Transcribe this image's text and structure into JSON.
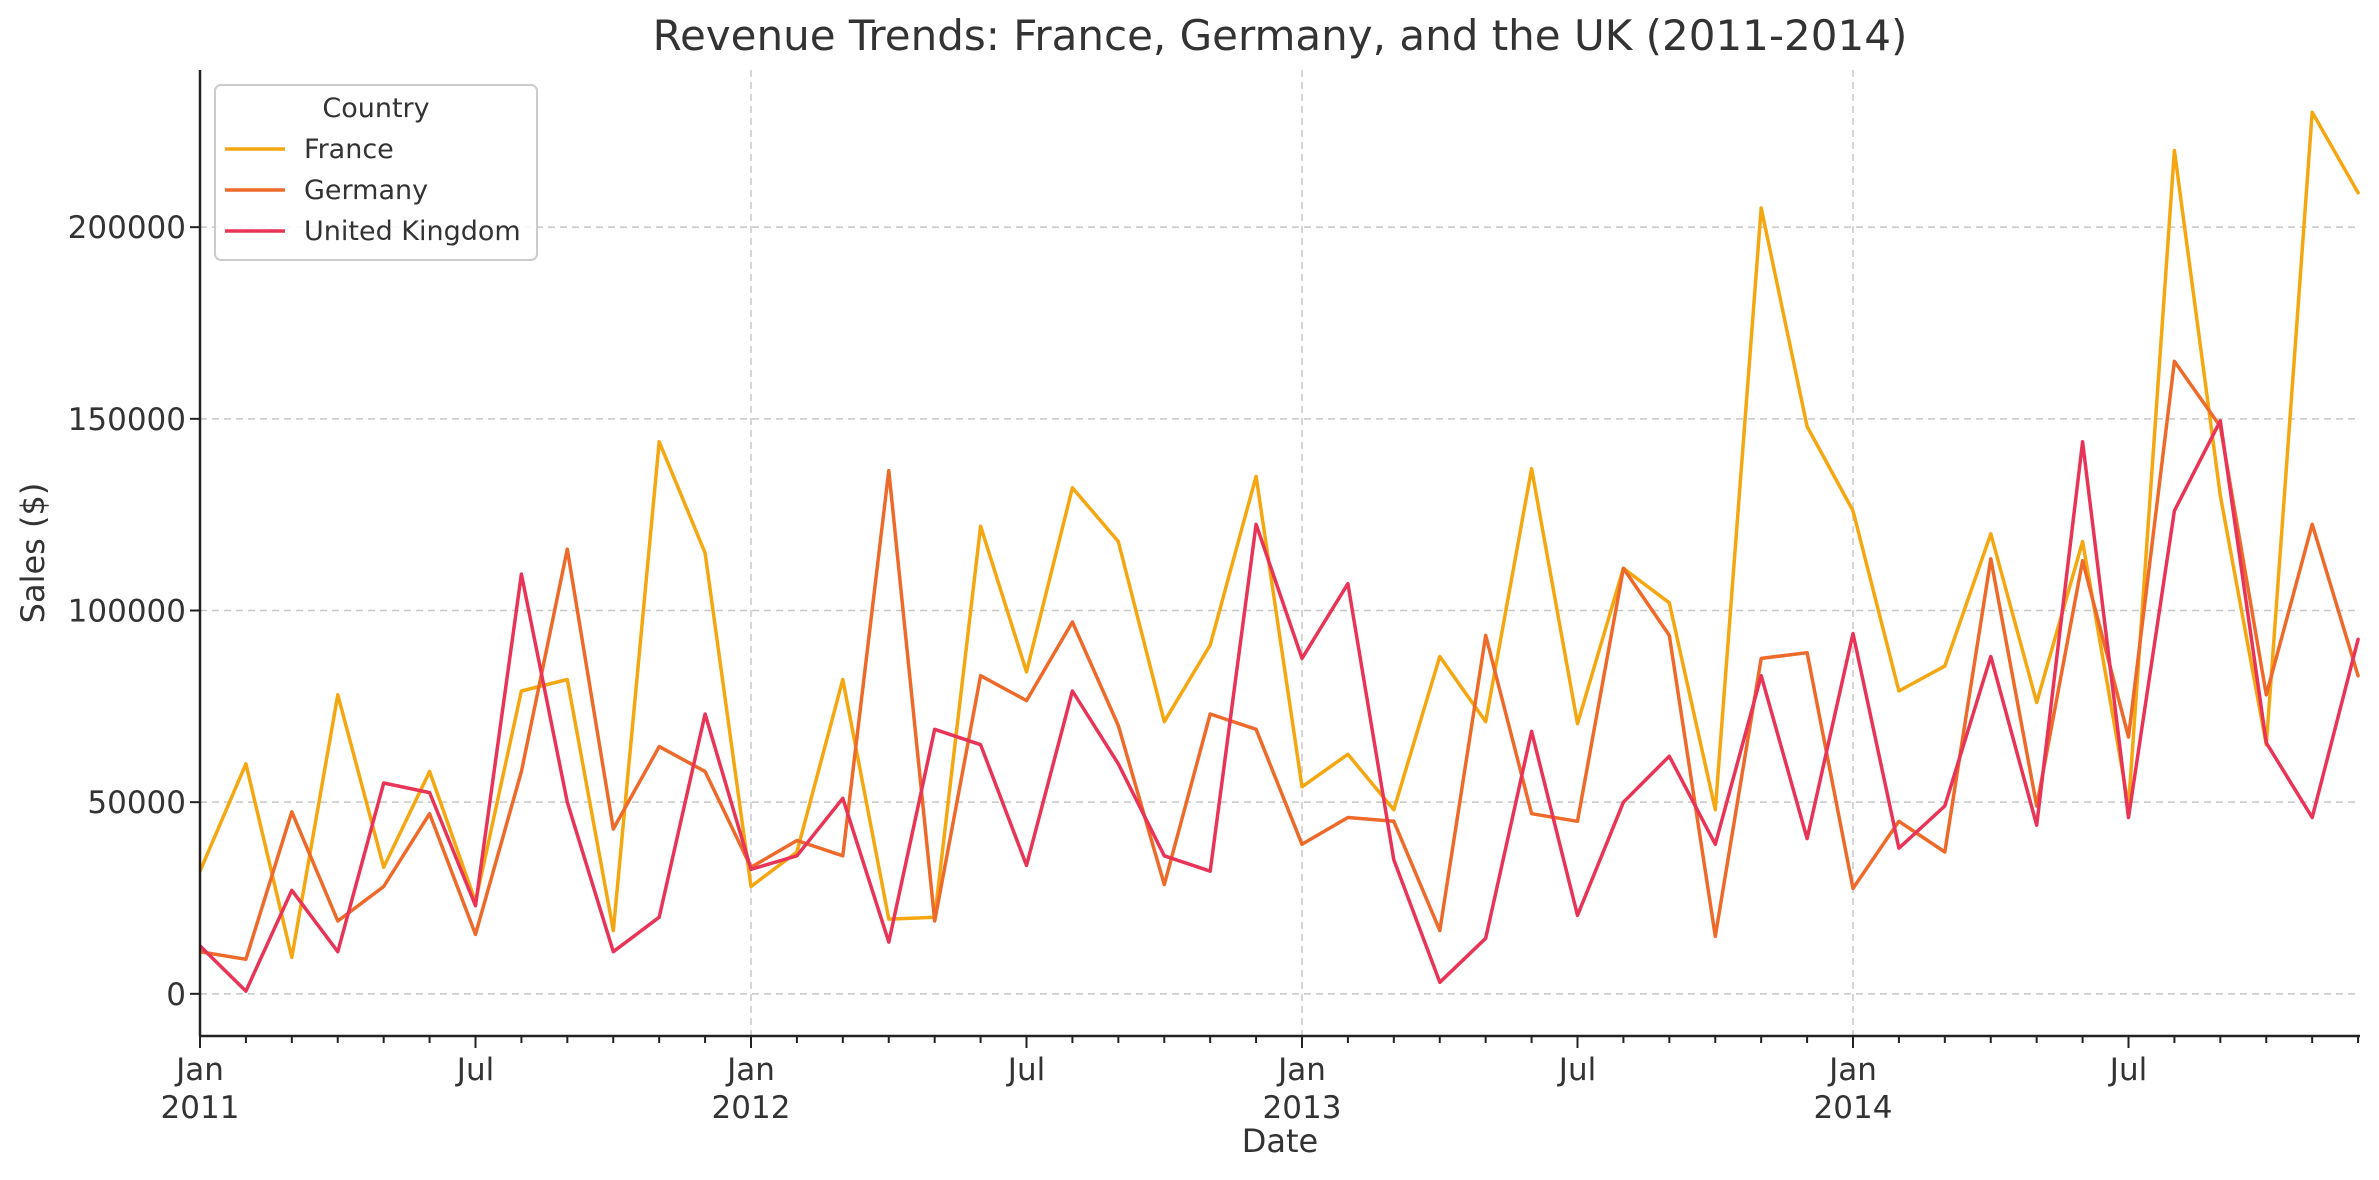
{
  "chart_data": {
    "type": "line",
    "title": "Revenue Trends: France, Germany, and the UK (2011-2014)",
    "xlabel": "Date",
    "ylabel": "Sales ($)",
    "ylim": [
      -11000,
      241000
    ],
    "y_ticks": [
      0,
      50000,
      100000,
      150000,
      200000
    ],
    "x_ticks": [
      {
        "month": 0,
        "label": "Jan",
        "sublabel": "2011"
      },
      {
        "month": 6,
        "label": "Jul",
        "sublabel": ""
      },
      {
        "month": 12,
        "label": "Jan",
        "sublabel": "2012"
      },
      {
        "month": 18,
        "label": "Jul",
        "sublabel": ""
      },
      {
        "month": 24,
        "label": "Jan",
        "sublabel": "2013"
      },
      {
        "month": 30,
        "label": "Jul",
        "sublabel": ""
      },
      {
        "month": 36,
        "label": "Jan",
        "sublabel": "2014"
      },
      {
        "month": 42,
        "label": "Jul",
        "sublabel": ""
      }
    ],
    "grid": true,
    "legend": {
      "title": "Country",
      "position": "top-left"
    },
    "x": [
      "2011-01",
      "2011-02",
      "2011-03",
      "2011-04",
      "2011-05",
      "2011-06",
      "2011-07",
      "2011-08",
      "2011-09",
      "2011-10",
      "2011-11",
      "2011-12",
      "2012-01",
      "2012-02",
      "2012-03",
      "2012-04",
      "2012-05",
      "2012-06",
      "2012-07",
      "2012-08",
      "2012-09",
      "2012-10",
      "2012-11",
      "2012-12",
      "2013-01",
      "2013-02",
      "2013-03",
      "2013-04",
      "2013-05",
      "2013-06",
      "2013-07",
      "2013-08",
      "2013-09",
      "2013-10",
      "2013-11",
      "2013-12",
      "2014-01",
      "2014-02",
      "2014-03",
      "2014-04",
      "2014-05",
      "2014-06",
      "2014-07",
      "2014-08",
      "2014-09",
      "2014-10",
      "2014-11",
      "2014-12"
    ],
    "series": [
      {
        "name": "France",
        "color": "#F5A712",
        "values": [
          32000,
          60000,
          9500,
          78000,
          33000,
          58000,
          24000,
          79000,
          82000,
          16500,
          144000,
          115000,
          28000,
          37000,
          82000,
          19500,
          20000,
          122000,
          84000,
          132000,
          118000,
          71000,
          91000,
          135000,
          54000,
          62500,
          48000,
          88000,
          71000,
          137000,
          70500,
          111000,
          102000,
          48000,
          205000,
          148000,
          126000,
          79000,
          85500,
          120000,
          76000,
          118000,
          49000,
          220000,
          130000,
          65000,
          230000,
          209000
        ]
      },
      {
        "name": "Germany",
        "color": "#EE6A2A",
        "values": [
          11000,
          9000,
          47500,
          19000,
          28000,
          47000,
          15500,
          58000,
          116000,
          43000,
          64500,
          58000,
          33000,
          40000,
          36000,
          136500,
          19000,
          83000,
          76500,
          97000,
          70000,
          28500,
          73000,
          69000,
          39000,
          46000,
          45000,
          16500,
          93500,
          47000,
          45000,
          111000,
          93500,
          15000,
          87500,
          89000,
          27500,
          45000,
          37000,
          113500,
          49000,
          113000,
          67000,
          165000,
          148000,
          78000,
          122500,
          83000
        ]
      },
      {
        "name": "United Kingdom",
        "color": "#E83456",
        "values": [
          12500,
          700,
          27000,
          11000,
          55000,
          52500,
          23000,
          109500,
          50000,
          11000,
          20000,
          73000,
          32500,
          36000,
          51000,
          13500,
          69000,
          65000,
          33500,
          79000,
          60000,
          36000,
          32000,
          122500,
          87500,
          107000,
          35000,
          3000,
          14500,
          68500,
          20500,
          50000,
          62000,
          39000,
          83000,
          40500,
          94000,
          38000,
          49000,
          88000,
          44000,
          144000,
          46000,
          126000,
          149500,
          65500,
          46000,
          92500
        ]
      }
    ]
  }
}
